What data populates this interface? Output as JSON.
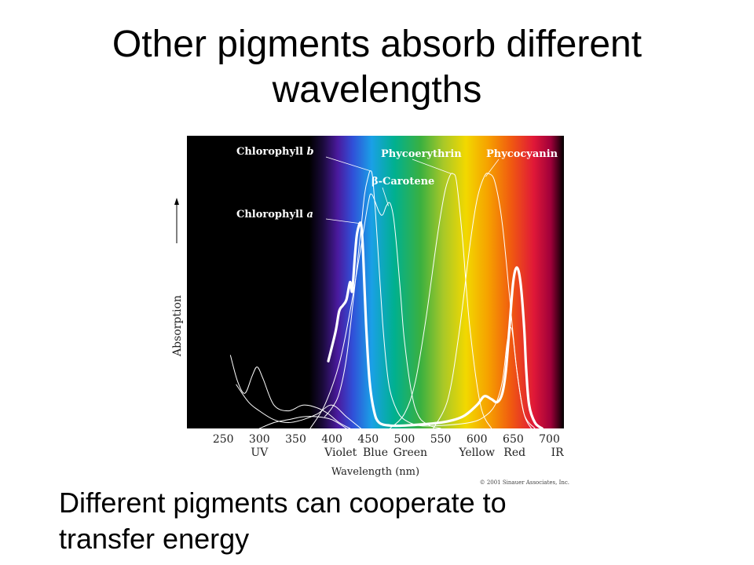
{
  "slide": {
    "title_line1": "Other pigments absorb different",
    "title_line2": "wavelengths",
    "caption_line1": "Different pigments can cooperate to",
    "caption_line2": "transfer energy"
  },
  "chart_data": {
    "type": "line",
    "xlabel": "Wavelength (nm)",
    "ylabel": "Absorption",
    "xlim": [
      200,
      720
    ],
    "ylim": [
      0,
      1
    ],
    "ticks": [
      250,
      300,
      350,
      400,
      450,
      500,
      550,
      600,
      650,
      700
    ],
    "regions": [
      {
        "label": "UV",
        "x": 300
      },
      {
        "label": "Violet",
        "x": 412
      },
      {
        "label": "Blue",
        "x": 460
      },
      {
        "label": "Green",
        "x": 508
      },
      {
        "label": "Yellow",
        "x": 600
      },
      {
        "label": "Red",
        "x": 652
      },
      {
        "label": "IR",
        "x": 711
      }
    ],
    "credit": "© 2001 Sinauer Associates, Inc.",
    "series": [
      {
        "name": "Chlorophyll a",
        "emphasis": true,
        "x": [
          395,
          405,
          410,
          415,
          420,
          425,
          428,
          432,
          435,
          440,
          443,
          447,
          452,
          458,
          465,
          480,
          500,
          550,
          580,
          600,
          610,
          620,
          628,
          635,
          640,
          645,
          650,
          655,
          660,
          665,
          668,
          672,
          680,
          690
        ],
        "y": [
          0.23,
          0.33,
          0.4,
          0.42,
          0.44,
          0.5,
          0.47,
          0.6,
          0.67,
          0.7,
          0.6,
          0.36,
          0.16,
          0.06,
          0.02,
          0.01,
          0.01,
          0.02,
          0.04,
          0.08,
          0.11,
          0.1,
          0.09,
          0.12,
          0.2,
          0.35,
          0.5,
          0.55,
          0.5,
          0.35,
          0.2,
          0.08,
          0.02,
          0.0
        ]
      },
      {
        "name": "Chlorophyll b",
        "x": [
          390,
          400,
          410,
          420,
          430,
          440,
          445,
          450,
          453,
          456,
          460,
          465,
          470,
          475,
          480,
          490,
          500,
          520,
          550,
          590,
          610,
          625,
          635,
          642,
          648,
          655,
          665,
          680
        ],
        "y": [
          0.04,
          0.07,
          0.12,
          0.24,
          0.45,
          0.68,
          0.8,
          0.86,
          0.88,
          0.86,
          0.74,
          0.55,
          0.36,
          0.22,
          0.13,
          0.06,
          0.03,
          0.01,
          0.01,
          0.02,
          0.04,
          0.08,
          0.16,
          0.3,
          0.34,
          0.2,
          0.05,
          0.0
        ]
      },
      {
        "name": "β-Carotene",
        "x": [
          370,
          390,
          410,
          425,
          440,
          450,
          455,
          465,
          470,
          475,
          480,
          485,
          490,
          495,
          500,
          510,
          520,
          535,
          550
        ],
        "y": [
          0.0,
          0.08,
          0.22,
          0.4,
          0.62,
          0.77,
          0.8,
          0.74,
          0.73,
          0.76,
          0.77,
          0.72,
          0.6,
          0.45,
          0.3,
          0.12,
          0.04,
          0.01,
          0.0
        ]
      },
      {
        "name": "Phycoerythrin",
        "x": [
          480,
          500,
          515,
          530,
          545,
          555,
          562,
          567,
          572,
          580,
          590,
          605,
          620
        ],
        "y": [
          0.0,
          0.05,
          0.16,
          0.38,
          0.65,
          0.8,
          0.86,
          0.87,
          0.84,
          0.65,
          0.35,
          0.08,
          0.0
        ]
      },
      {
        "name": "Phycocyanin",
        "x": [
          540,
          560,
          575,
          590,
          600,
          610,
          617,
          625,
          635,
          645,
          655,
          665,
          675
        ],
        "y": [
          0.0,
          0.1,
          0.32,
          0.62,
          0.78,
          0.86,
          0.87,
          0.84,
          0.7,
          0.45,
          0.2,
          0.05,
          0.0
        ]
      },
      {
        "name": "uv-absorption-a",
        "x": [
          260,
          270,
          280,
          290,
          297,
          305,
          320,
          340,
          360,
          380,
          395,
          410,
          425
        ],
        "y": [
          0.25,
          0.16,
          0.12,
          0.18,
          0.21,
          0.17,
          0.08,
          0.06,
          0.08,
          0.07,
          0.05,
          0.02,
          0.0
        ]
      },
      {
        "name": "uv-absorption-b",
        "x": [
          268,
          285,
          300,
          320,
          340,
          360,
          380,
          400,
          420,
          440
        ],
        "y": [
          0.15,
          0.09,
          0.06,
          0.03,
          0.02,
          0.03,
          0.05,
          0.08,
          0.04,
          0.0
        ]
      },
      {
        "name": "uv-absorption-c",
        "x": [
          300,
          320,
          340,
          360,
          380,
          400,
          420
        ],
        "y": [
          0.0,
          0.02,
          0.03,
          0.04,
          0.04,
          0.03,
          0.0
        ]
      }
    ],
    "labels": [
      {
        "name": "Chlorophyll b",
        "main": "Chlorophyll ",
        "italic": "b",
        "target_x": 453,
        "target_y": 0.88
      },
      {
        "name": "Chlorophyll a",
        "main": "Chlorophyll ",
        "italic": "a",
        "target_x": 440,
        "target_y": 0.7
      },
      {
        "name": "β-Carotene",
        "main": "β-Carotene",
        "italic": "",
        "target_x": 478,
        "target_y": 0.76
      },
      {
        "name": "Phycoerythrin",
        "main": "Phycoerythrin",
        "italic": "",
        "target_x": 565,
        "target_y": 0.87
      },
      {
        "name": "Phycocyanin",
        "main": "Phycocyanin",
        "italic": "",
        "target_x": 612,
        "target_y": 0.86
      }
    ]
  }
}
